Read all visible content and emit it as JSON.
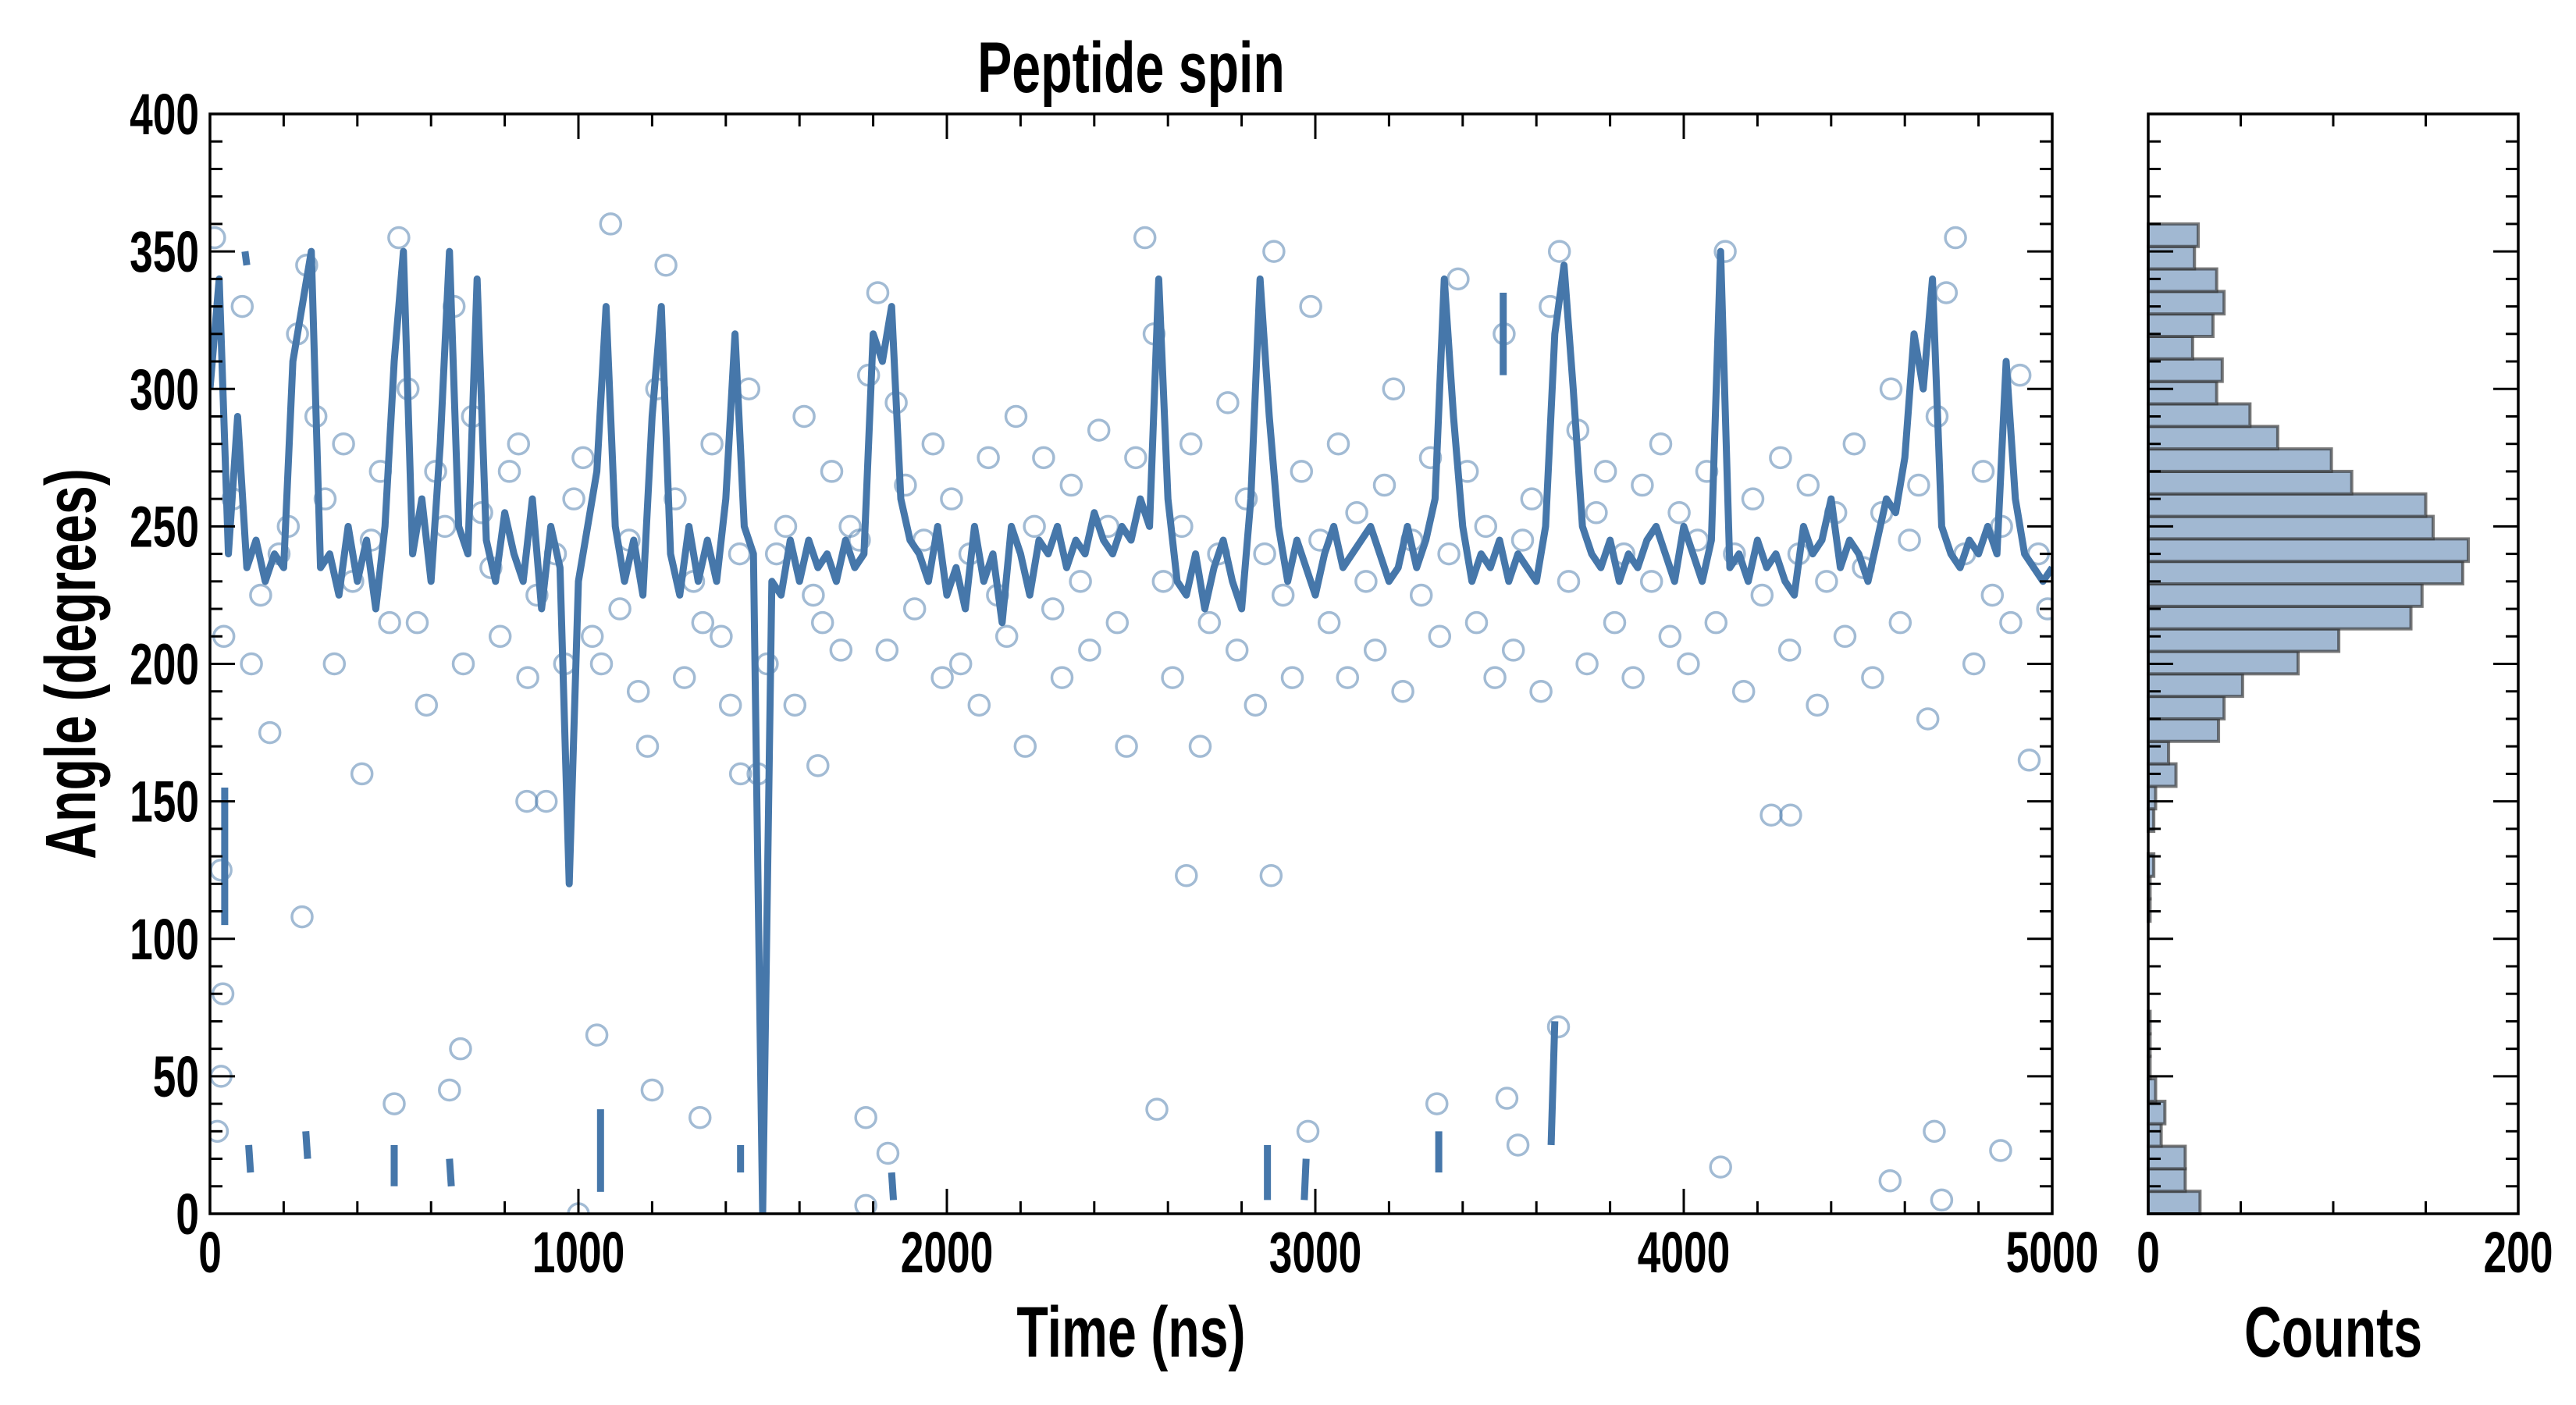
{
  "chart_data": [
    {
      "type": "scatter+line",
      "title": "Peptide spin",
      "xlabel": "Time (ns)",
      "ylabel": "Angle (degrees)",
      "xlim": [
        0,
        5000
      ],
      "ylim": [
        0,
        400
      ],
      "x_ticks": [
        "0",
        "1000",
        "2000",
        "3000",
        "4000",
        "5000"
      ],
      "y_ticks": [
        "0",
        "50",
        "100",
        "150",
        "200",
        "250",
        "300",
        "350",
        "400"
      ],
      "grid": false,
      "colors": {
        "line": "#4677aa",
        "points": "#4677aa"
      },
      "line_series": {
        "name": "smoothed angle",
        "t_start": 0,
        "t_step": 25,
        "values": [
          300,
          340,
          240,
          290,
          235,
          245,
          230,
          240,
          235,
          310,
          330,
          350,
          235,
          240,
          225,
          250,
          230,
          245,
          220,
          250,
          310,
          350,
          240,
          260,
          230,
          280,
          350,
          250,
          240,
          340,
          245,
          230,
          255,
          240,
          230,
          260,
          220,
          250,
          235,
          120,
          230,
          250,
          270,
          330,
          250,
          230,
          245,
          225,
          290,
          330,
          240,
          225,
          250,
          230,
          245,
          230,
          260,
          320,
          250,
          240,
          0,
          230,
          225,
          245,
          230,
          245,
          235,
          240,
          230,
          245,
          235,
          240,
          320,
          310,
          330,
          260,
          245,
          240,
          230,
          250,
          225,
          235,
          220,
          250,
          230,
          240,
          215,
          250,
          240,
          225,
          245,
          240,
          250,
          235,
          245,
          240,
          255,
          245,
          240,
          250,
          245,
          260,
          250,
          340,
          260,
          230,
          225,
          240,
          220,
          235,
          245,
          230,
          220,
          260,
          340,
          290,
          250,
          230,
          245,
          235,
          225,
          240,
          250,
          235,
          240,
          245,
          250,
          240,
          230,
          235,
          250,
          235,
          245,
          260,
          340,
          290,
          250,
          230,
          240,
          235,
          245,
          230,
          240,
          235,
          230,
          250,
          320,
          345,
          300,
          250,
          240,
          235,
          245,
          230,
          240,
          235,
          245,
          250,
          240,
          230,
          250,
          240,
          230,
          245,
          350,
          235,
          240,
          230,
          245,
          235,
          240,
          230,
          225,
          250,
          240,
          245,
          260,
          235,
          245,
          240,
          230,
          245,
          260,
          255,
          275,
          320,
          300,
          340,
          250,
          240,
          235,
          245,
          240,
          250,
          240,
          310,
          260,
          240,
          235,
          230,
          235
        ]
      },
      "wrapped_segments": [
        [
          40,
          155,
          40,
          105
        ],
        [
          105,
          25,
          110,
          15
        ],
        [
          95,
          350,
          100,
          345
        ],
        [
          260,
          30,
          265,
          20
        ],
        [
          500,
          25,
          500,
          10
        ],
        [
          650,
          20,
          655,
          10
        ],
        [
          1060,
          38,
          1060,
          8
        ],
        [
          1440,
          25,
          1440,
          15
        ],
        [
          1850,
          15,
          1855,
          5
        ],
        [
          2870,
          25,
          2870,
          5
        ],
        [
          2975,
          20,
          2970,
          5
        ],
        [
          3335,
          30,
          3335,
          15
        ],
        [
          3650,
          70,
          3640,
          25
        ],
        [
          3510,
          335,
          3510,
          305
        ]
      ],
      "scatter": {
        "name": "raw angle",
        "t_start": 12.5,
        "t_step": 25,
        "values": [
          355,
          210,
          260,
          330,
          200,
          225,
          175,
          240,
          250,
          320,
          345,
          290,
          260,
          200,
          280,
          230,
          160,
          245,
          270,
          215,
          355,
          300,
          215,
          185,
          270,
          250,
          330,
          200,
          290,
          255,
          235,
          210,
          270,
          280,
          195,
          225,
          150,
          240,
          200,
          260,
          275,
          210,
          200,
          360,
          220,
          245,
          190,
          170,
          300,
          345,
          260,
          195,
          230,
          215,
          280,
          210,
          185,
          240,
          300,
          160,
          200,
          240,
          250,
          185,
          290,
          225,
          215,
          270,
          205,
          250,
          245,
          305,
          335,
          205,
          295,
          265,
          220,
          245,
          280,
          195,
          260,
          200,
          240,
          185,
          275,
          225,
          210,
          290,
          170,
          250,
          275,
          220,
          195,
          265,
          230,
          205,
          285,
          250,
          215,
          170,
          275,
          355,
          320,
          230,
          195,
          250,
          280,
          170,
          215,
          240,
          295,
          205,
          260,
          185,
          240,
          350,
          225,
          195,
          270,
          330,
          245,
          215,
          280,
          195,
          255,
          230,
          205,
          265,
          300,
          190,
          245,
          225,
          275,
          210,
          240,
          340,
          270,
          215,
          250,
          195,
          320,
          205,
          245,
          260,
          190,
          330,
          350,
          230,
          285,
          200,
          255,
          270,
          215,
          240,
          195,
          265,
          230,
          280,
          210,
          255,
          200,
          245,
          270,
          215,
          350,
          240,
          190,
          260,
          225,
          145,
          275,
          205,
          240,
          265,
          185,
          230,
          255,
          210,
          280,
          235,
          195,
          255,
          300,
          215,
          245,
          265,
          180,
          290,
          335,
          355,
          240,
          200,
          270,
          225,
          250,
          215,
          305,
          165,
          240,
          220
        ],
        "extra_points": [
          [
            30,
            125
          ],
          [
            35,
            80
          ],
          [
            30,
            50
          ],
          [
            20,
            30
          ],
          [
            250,
            108
          ],
          [
            500,
            40
          ],
          [
            680,
            60
          ],
          [
            650,
            45
          ],
          [
            1050,
            65
          ],
          [
            1200,
            45
          ],
          [
            1330,
            35
          ],
          [
            1440,
            160
          ],
          [
            1650,
            163
          ],
          [
            1780,
            35
          ],
          [
            1840,
            22
          ],
          [
            2570,
            38
          ],
          [
            2650,
            123
          ],
          [
            2880,
            123
          ],
          [
            2980,
            30
          ],
          [
            3330,
            40
          ],
          [
            3520,
            42
          ],
          [
            3660,
            68
          ],
          [
            3550,
            25
          ],
          [
            4100,
            17
          ],
          [
            4290,
            145
          ],
          [
            4560,
            12
          ],
          [
            4680,
            30
          ],
          [
            4860,
            23
          ],
          [
            1780,
            3
          ],
          [
            860,
            150
          ],
          [
            1000,
            0
          ],
          [
            4700,
            5
          ]
        ]
      }
    },
    {
      "type": "histogram",
      "orientation": "horizontal",
      "xlabel": "Counts",
      "xlim": [
        0,
        200
      ],
      "ylim": [
        0,
        400
      ],
      "x_ticks": [
        "0",
        "200"
      ],
      "x_minor_ticks": [
        50,
        100,
        150
      ],
      "bin_range": [
        0,
        360
      ],
      "counts": [
        28,
        20,
        20,
        7,
        9,
        4,
        1,
        1,
        1,
        0,
        0,
        0,
        0,
        1,
        1,
        3,
        0,
        3,
        4,
        15,
        11,
        38,
        41,
        51,
        81,
        103,
        142,
        148,
        170,
        173,
        154,
        150,
        110,
        99,
        70,
        55,
        37,
        40,
        24,
        35,
        41,
        37,
        25,
        27
      ],
      "colors": {
        "fill": "#a1b8d2",
        "edge": "#333333"
      }
    }
  ]
}
